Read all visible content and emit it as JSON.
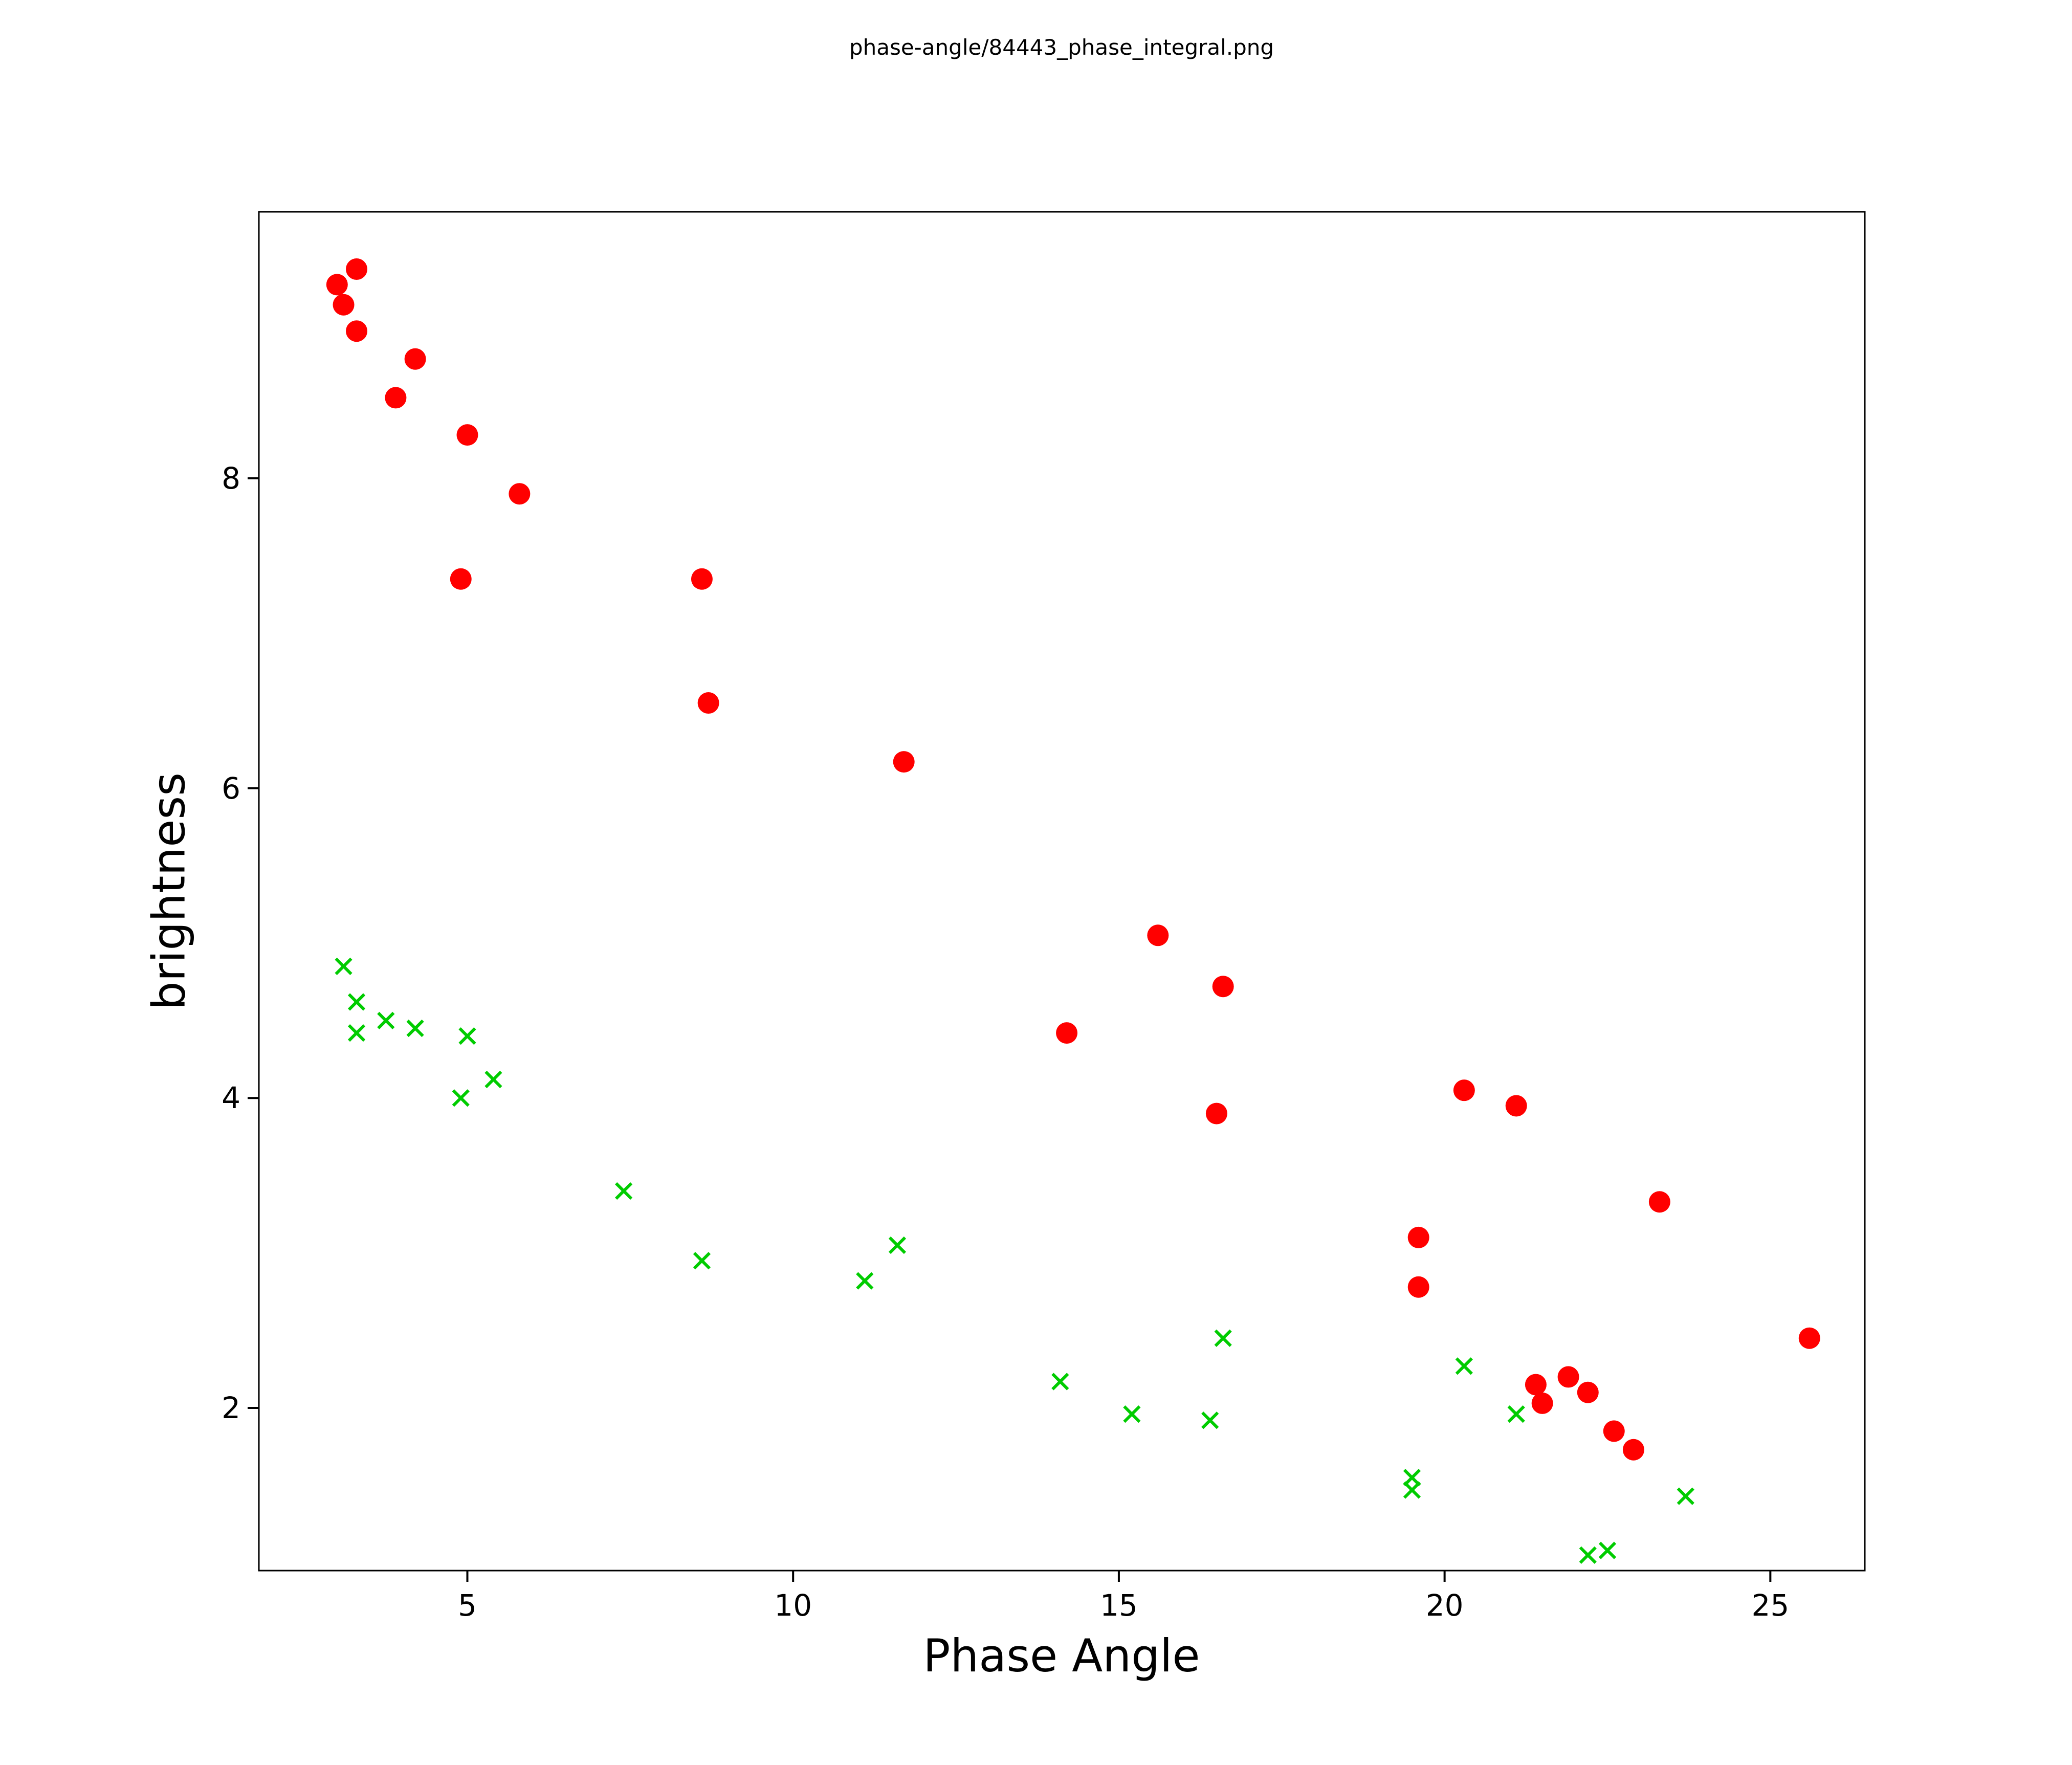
{
  "title": "phase-angle/84443_phase_integral.png",
  "chart_data": {
    "type": "scatter",
    "title": "phase-angle/84443_phase_integral.png",
    "xlabel": "Phase Angle",
    "ylabel": "brightness",
    "xlim": [
      1.8,
      26.45
    ],
    "ylim": [
      0.95,
      9.72
    ],
    "x_ticks": [
      5,
      10,
      15,
      20,
      25
    ],
    "y_ticks": [
      2,
      4,
      6,
      8
    ],
    "grid": false,
    "legend_position": "none",
    "colors": {
      "red_series": "#ff0000",
      "green_series": "#00cc00",
      "axis": "#000000",
      "background": "#ffffff"
    },
    "series": [
      {
        "name": "red-circles",
        "marker": "circle",
        "color": "#ff0000",
        "points": [
          [
            3.0,
            9.25
          ],
          [
            3.1,
            9.12
          ],
          [
            3.3,
            9.35
          ],
          [
            3.3,
            8.95
          ],
          [
            3.9,
            8.52
          ],
          [
            4.2,
            8.77
          ],
          [
            5.0,
            8.28
          ],
          [
            5.8,
            7.9
          ],
          [
            4.9,
            7.35
          ],
          [
            8.6,
            7.35
          ],
          [
            8.7,
            6.55
          ],
          [
            11.7,
            6.17
          ],
          [
            15.6,
            5.05
          ],
          [
            16.6,
            4.72
          ],
          [
            14.2,
            4.42
          ],
          [
            16.5,
            3.9
          ],
          [
            20.3,
            4.05
          ],
          [
            21.1,
            3.95
          ],
          [
            19.6,
            3.1
          ],
          [
            19.6,
            2.78
          ],
          [
            23.3,
            3.33
          ],
          [
            21.4,
            2.15
          ],
          [
            21.9,
            2.2
          ],
          [
            21.5,
            2.03
          ],
          [
            22.2,
            2.1
          ],
          [
            22.6,
            1.85
          ],
          [
            22.9,
            1.73
          ],
          [
            25.6,
            2.45
          ]
        ]
      },
      {
        "name": "green-x",
        "marker": "x",
        "color": "#00cc00",
        "points": [
          [
            3.1,
            4.85
          ],
          [
            3.3,
            4.62
          ],
          [
            3.3,
            4.42
          ],
          [
            3.75,
            4.5
          ],
          [
            4.2,
            4.45
          ],
          [
            5.0,
            4.4
          ],
          [
            4.9,
            4.0
          ],
          [
            5.4,
            4.12
          ],
          [
            7.4,
            3.4
          ],
          [
            8.6,
            2.95
          ],
          [
            11.6,
            3.05
          ],
          [
            11.1,
            2.82
          ],
          [
            16.6,
            2.45
          ],
          [
            14.1,
            2.17
          ],
          [
            15.2,
            1.96
          ],
          [
            16.4,
            1.92
          ],
          [
            20.3,
            2.27
          ],
          [
            21.1,
            1.96
          ],
          [
            19.5,
            1.55
          ],
          [
            19.5,
            1.47
          ],
          [
            23.7,
            1.43
          ],
          [
            22.2,
            1.05
          ],
          [
            22.5,
            1.08
          ]
        ]
      }
    ]
  }
}
